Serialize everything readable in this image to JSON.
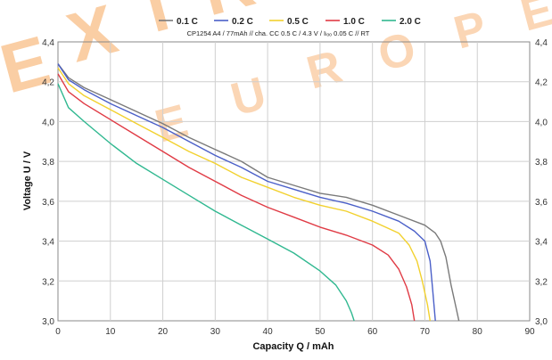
{
  "chart_data": {
    "type": "line",
    "subtitle": "CP1254  A4 / 77mAh  // cha. CC  0.5 C / 4.3 V / Iₗₒₒ 0.05 C // RT",
    "xlabel": "Capacity Q / mAh",
    "ylabel": "Voltage U / V",
    "xlim": [
      0,
      90
    ],
    "ylim": [
      3.0,
      4.4
    ],
    "x_ticks": [
      "0",
      "10",
      "20",
      "30",
      "40",
      "50",
      "60",
      "70",
      "80",
      "90"
    ],
    "y_ticks": [
      "3,0",
      "3,2",
      "3,4",
      "3,6",
      "3,8",
      "4,0",
      "4,2",
      "4,4"
    ],
    "grid": true,
    "legend_position": "top-center",
    "watermark": "EXTRA EUROPE",
    "series": [
      {
        "name": "0.1 C",
        "color": "#7a7a7a",
        "points": [
          [
            0,
            4.29
          ],
          [
            2,
            4.22
          ],
          [
            5,
            4.17
          ],
          [
            10,
            4.11
          ],
          [
            15,
            4.05
          ],
          [
            20,
            3.99
          ],
          [
            25,
            3.92
          ],
          [
            30,
            3.86
          ],
          [
            35,
            3.8
          ],
          [
            40,
            3.72
          ],
          [
            45,
            3.68
          ],
          [
            50,
            3.64
          ],
          [
            55,
            3.62
          ],
          [
            60,
            3.58
          ],
          [
            65,
            3.53
          ],
          [
            70,
            3.48
          ],
          [
            72,
            3.44
          ],
          [
            73,
            3.4
          ],
          [
            74,
            3.32
          ],
          [
            75,
            3.18
          ],
          [
            76,
            3.06
          ],
          [
            76.5,
            3.0
          ]
        ]
      },
      {
        "name": "0.2 C",
        "color": "#4a5fc8",
        "points": [
          [
            0,
            4.29
          ],
          [
            2,
            4.21
          ],
          [
            5,
            4.16
          ],
          [
            10,
            4.09
          ],
          [
            15,
            4.03
          ],
          [
            20,
            3.97
          ],
          [
            25,
            3.9
          ],
          [
            30,
            3.83
          ],
          [
            35,
            3.77
          ],
          [
            40,
            3.7
          ],
          [
            45,
            3.66
          ],
          [
            50,
            3.62
          ],
          [
            55,
            3.59
          ],
          [
            60,
            3.55
          ],
          [
            65,
            3.5
          ],
          [
            68,
            3.45
          ],
          [
            70,
            3.4
          ],
          [
            71,
            3.3
          ],
          [
            71.5,
            3.15
          ],
          [
            72,
            3.0
          ]
        ]
      },
      {
        "name": "0.5 C",
        "color": "#f2d12e",
        "points": [
          [
            0,
            4.27
          ],
          [
            2,
            4.19
          ],
          [
            5,
            4.13
          ],
          [
            10,
            4.06
          ],
          [
            15,
            3.99
          ],
          [
            20,
            3.92
          ],
          [
            25,
            3.85
          ],
          [
            30,
            3.79
          ],
          [
            35,
            3.72
          ],
          [
            40,
            3.67
          ],
          [
            45,
            3.62
          ],
          [
            50,
            3.58
          ],
          [
            55,
            3.55
          ],
          [
            60,
            3.5
          ],
          [
            65,
            3.44
          ],
          [
            67,
            3.38
          ],
          [
            68.5,
            3.3
          ],
          [
            69.5,
            3.2
          ],
          [
            70.5,
            3.08
          ],
          [
            71,
            3.0
          ]
        ]
      },
      {
        "name": "1.0 C",
        "color": "#e03b45",
        "points": [
          [
            0,
            4.24
          ],
          [
            2,
            4.15
          ],
          [
            5,
            4.09
          ],
          [
            10,
            4.01
          ],
          [
            15,
            3.93
          ],
          [
            20,
            3.85
          ],
          [
            25,
            3.77
          ],
          [
            30,
            3.7
          ],
          [
            35,
            3.63
          ],
          [
            40,
            3.57
          ],
          [
            45,
            3.52
          ],
          [
            50,
            3.47
          ],
          [
            55,
            3.43
          ],
          [
            60,
            3.38
          ],
          [
            63,
            3.33
          ],
          [
            65,
            3.26
          ],
          [
            66.5,
            3.17
          ],
          [
            67.5,
            3.08
          ],
          [
            68,
            3.0
          ]
        ]
      },
      {
        "name": "2.0 C",
        "color": "#30b890",
        "points": [
          [
            0,
            4.19
          ],
          [
            2,
            4.07
          ],
          [
            5,
            4.0
          ],
          [
            10,
            3.89
          ],
          [
            15,
            3.79
          ],
          [
            20,
            3.71
          ],
          [
            25,
            3.63
          ],
          [
            30,
            3.55
          ],
          [
            35,
            3.48
          ],
          [
            40,
            3.41
          ],
          [
            45,
            3.34
          ],
          [
            50,
            3.25
          ],
          [
            53,
            3.18
          ],
          [
            55,
            3.1
          ],
          [
            56,
            3.04
          ],
          [
            56.5,
            3.0
          ]
        ]
      }
    ]
  }
}
